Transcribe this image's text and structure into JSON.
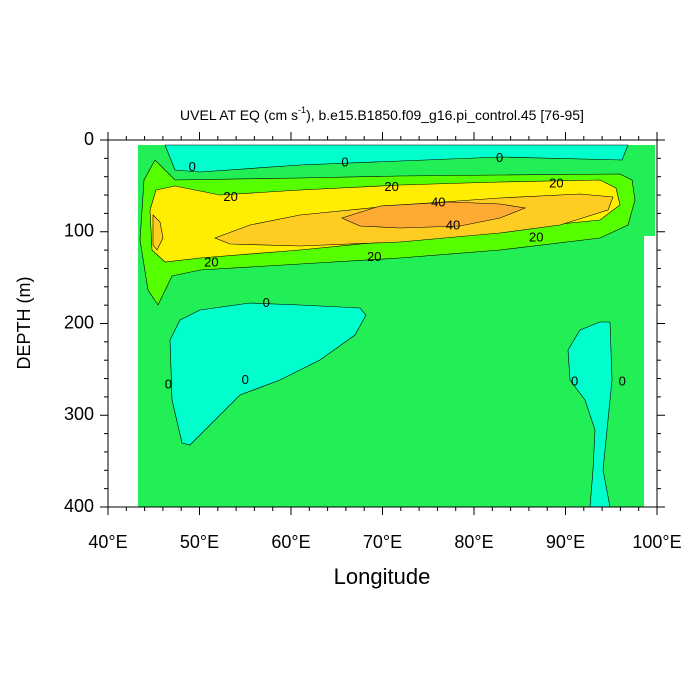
{
  "chart_data": {
    "type": "contour",
    "title": [
      "UVEL AT EQ (cm s",
      "-1",
      "), b.e15.B1850.f09_g16.pi_control.45 [76-95]"
    ],
    "x_label": "Longitude",
    "y_label": "DEPTH (m)",
    "xlim": [
      40,
      100
    ],
    "ylim": [
      400,
      0
    ],
    "y_inverted": true,
    "xticks": [
      {
        "value": 40,
        "label": "40°E"
      },
      {
        "value": 50,
        "label": "50°E"
      },
      {
        "value": 60,
        "label": "60°E"
      },
      {
        "value": 70,
        "label": "70°E"
      },
      {
        "value": 80,
        "label": "80°E"
      },
      {
        "value": 90,
        "label": "90°E"
      },
      {
        "value": 100,
        "label": "100°E"
      }
    ],
    "yticks": [
      0,
      100,
      200,
      300,
      400
    ],
    "contour_labels": [
      {
        "value": 0,
        "x": 49.2,
        "y": 30
      },
      {
        "value": 0,
        "x": 65.9,
        "y": 25
      },
      {
        "value": 0,
        "x": 82.8,
        "y": 20
      },
      {
        "value": 20,
        "x": 53.4,
        "y": 63
      },
      {
        "value": 20,
        "x": 71.0,
        "y": 52
      },
      {
        "value": 20,
        "x": 89.0,
        "y": 48
      },
      {
        "value": 40,
        "x": 76.1,
        "y": 69
      },
      {
        "value": 40,
        "x": 77.7,
        "y": 94
      },
      {
        "value": 20,
        "x": 86.8,
        "y": 107
      },
      {
        "value": 20,
        "x": 69.1,
        "y": 128
      },
      {
        "value": 20,
        "x": 51.3,
        "y": 134
      },
      {
        "value": 0,
        "x": 57.3,
        "y": 178
      },
      {
        "value": 0,
        "x": 46.6,
        "y": 267
      },
      {
        "value": 0,
        "x": 55.0,
        "y": 262
      },
      {
        "value": 0,
        "x": 91.0,
        "y": 264
      },
      {
        "value": 0,
        "x": 96.2,
        "y": 264
      }
    ]
  }
}
